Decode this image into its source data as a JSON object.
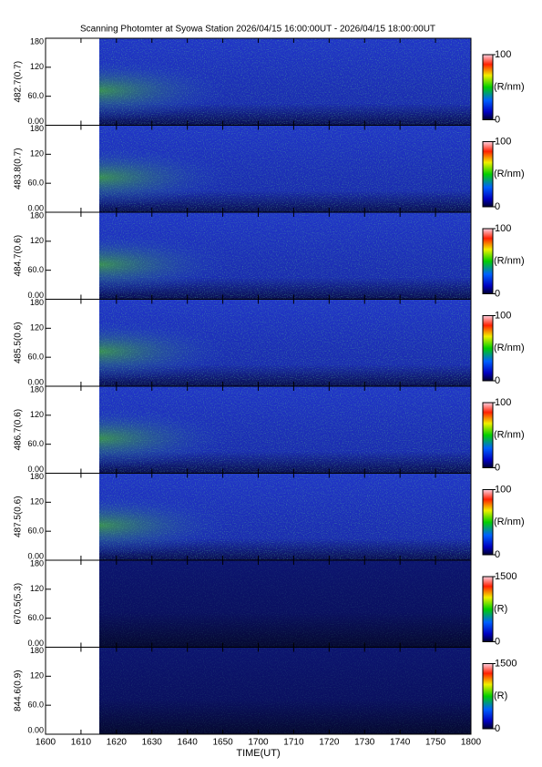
{
  "chart_data": [
    {
      "type": "heatmap",
      "title": "Scanning Photomter at Syowa Station 2026/04/15 16:00:00UT - 2026/04/15 18:00:00UT",
      "ylabel": "482.7(0.7)",
      "ylim": [
        0,
        180
      ],
      "yticks": [
        {
          "value": 0,
          "label": "0.00"
        },
        {
          "value": 60,
          "label": "60.0"
        },
        120,
        180
      ],
      "colorbar": {
        "lim": [
          0,
          100
        ],
        "ticks": [
          0,
          100
        ],
        "label": "(R/nm)"
      }
    },
    {
      "type": "heatmap",
      "ylabel": "483.8(0.7)",
      "ylim": [
        0,
        180
      ],
      "yticks": [
        {
          "value": 0,
          "label": "0.00"
        },
        {
          "value": 60,
          "label": "60.0"
        },
        120,
        180
      ],
      "colorbar": {
        "lim": [
          0,
          100
        ],
        "ticks": [
          0,
          100
        ],
        "label": "(R/nm)"
      }
    },
    {
      "type": "heatmap",
      "ylabel": "484.7(0.6)",
      "ylim": [
        0,
        180
      ],
      "yticks": [
        {
          "value": 0,
          "label": "0.00"
        },
        {
          "value": 60,
          "label": "60.0"
        },
        120,
        180
      ],
      "colorbar": {
        "lim": [
          0,
          100
        ],
        "ticks": [
          0,
          100
        ],
        "label": "(R/nm)"
      }
    },
    {
      "type": "heatmap",
      "ylabel": "485.5(0.6)",
      "ylim": [
        0,
        180
      ],
      "yticks": [
        {
          "value": 0,
          "label": "0.00"
        },
        {
          "value": 60,
          "label": "60.0"
        },
        120,
        180
      ],
      "colorbar": {
        "lim": [
          0,
          100
        ],
        "ticks": [
          0,
          100
        ],
        "label": "(R/nm)"
      }
    },
    {
      "type": "heatmap",
      "ylabel": "486.7(0.6)",
      "ylim": [
        0,
        180
      ],
      "yticks": [
        {
          "value": 0,
          "label": "0.00"
        },
        {
          "value": 60,
          "label": "60.0"
        },
        120,
        180
      ],
      "colorbar": {
        "lim": [
          0,
          100
        ],
        "ticks": [
          0,
          100
        ],
        "label": "(R/nm)"
      }
    },
    {
      "type": "heatmap",
      "ylabel": "487.5(0.6)",
      "ylim": [
        0,
        180
      ],
      "yticks": [
        {
          "value": 0,
          "label": "0.00"
        },
        {
          "value": 60,
          "label": "60.0"
        },
        120,
        180
      ],
      "colorbar": {
        "lim": [
          0,
          100
        ],
        "ticks": [
          0,
          100
        ],
        "label": "(R/nm)"
      }
    },
    {
      "type": "heatmap",
      "ylabel": "670.5(5.3)",
      "ylim": [
        0,
        180
      ],
      "yticks": [
        {
          "value": 0,
          "label": "0.00"
        },
        {
          "value": 60,
          "label": "60.0"
        },
        120,
        180
      ],
      "colorbar": {
        "lim": [
          0,
          1500
        ],
        "ticks": [
          0,
          1500
        ],
        "label": "(R)"
      }
    },
    {
      "type": "heatmap",
      "ylabel": "844.6(0.9)",
      "ylim": [
        0,
        180
      ],
      "yticks": [
        {
          "value": 0,
          "label": "0.00"
        },
        {
          "value": 60,
          "label": "60.0"
        },
        120,
        180
      ],
      "colorbar": {
        "lim": [
          0,
          1500
        ],
        "ticks": [
          0,
          1500
        ],
        "label": "(R)"
      },
      "xlabel": "TIME(UT)",
      "xlim": [
        0,
        120
      ],
      "xticks": [
        {
          "value": 0,
          "label": "1600"
        },
        {
          "value": 10,
          "label": "1610"
        },
        {
          "value": 20,
          "label": "1620"
        },
        {
          "value": 30,
          "label": "1630"
        },
        {
          "value": 40,
          "label": "1640"
        },
        {
          "value": 50,
          "label": "1650"
        },
        {
          "value": 60,
          "label": "1700"
        },
        {
          "value": 70,
          "label": "1710"
        },
        {
          "value": 80,
          "label": "1720"
        },
        {
          "value": 90,
          "label": "1730"
        },
        {
          "value": 100,
          "label": "1740"
        },
        {
          "value": 110,
          "label": "1750"
        },
        {
          "value": 120,
          "label": "1800"
        }
      ]
    }
  ]
}
